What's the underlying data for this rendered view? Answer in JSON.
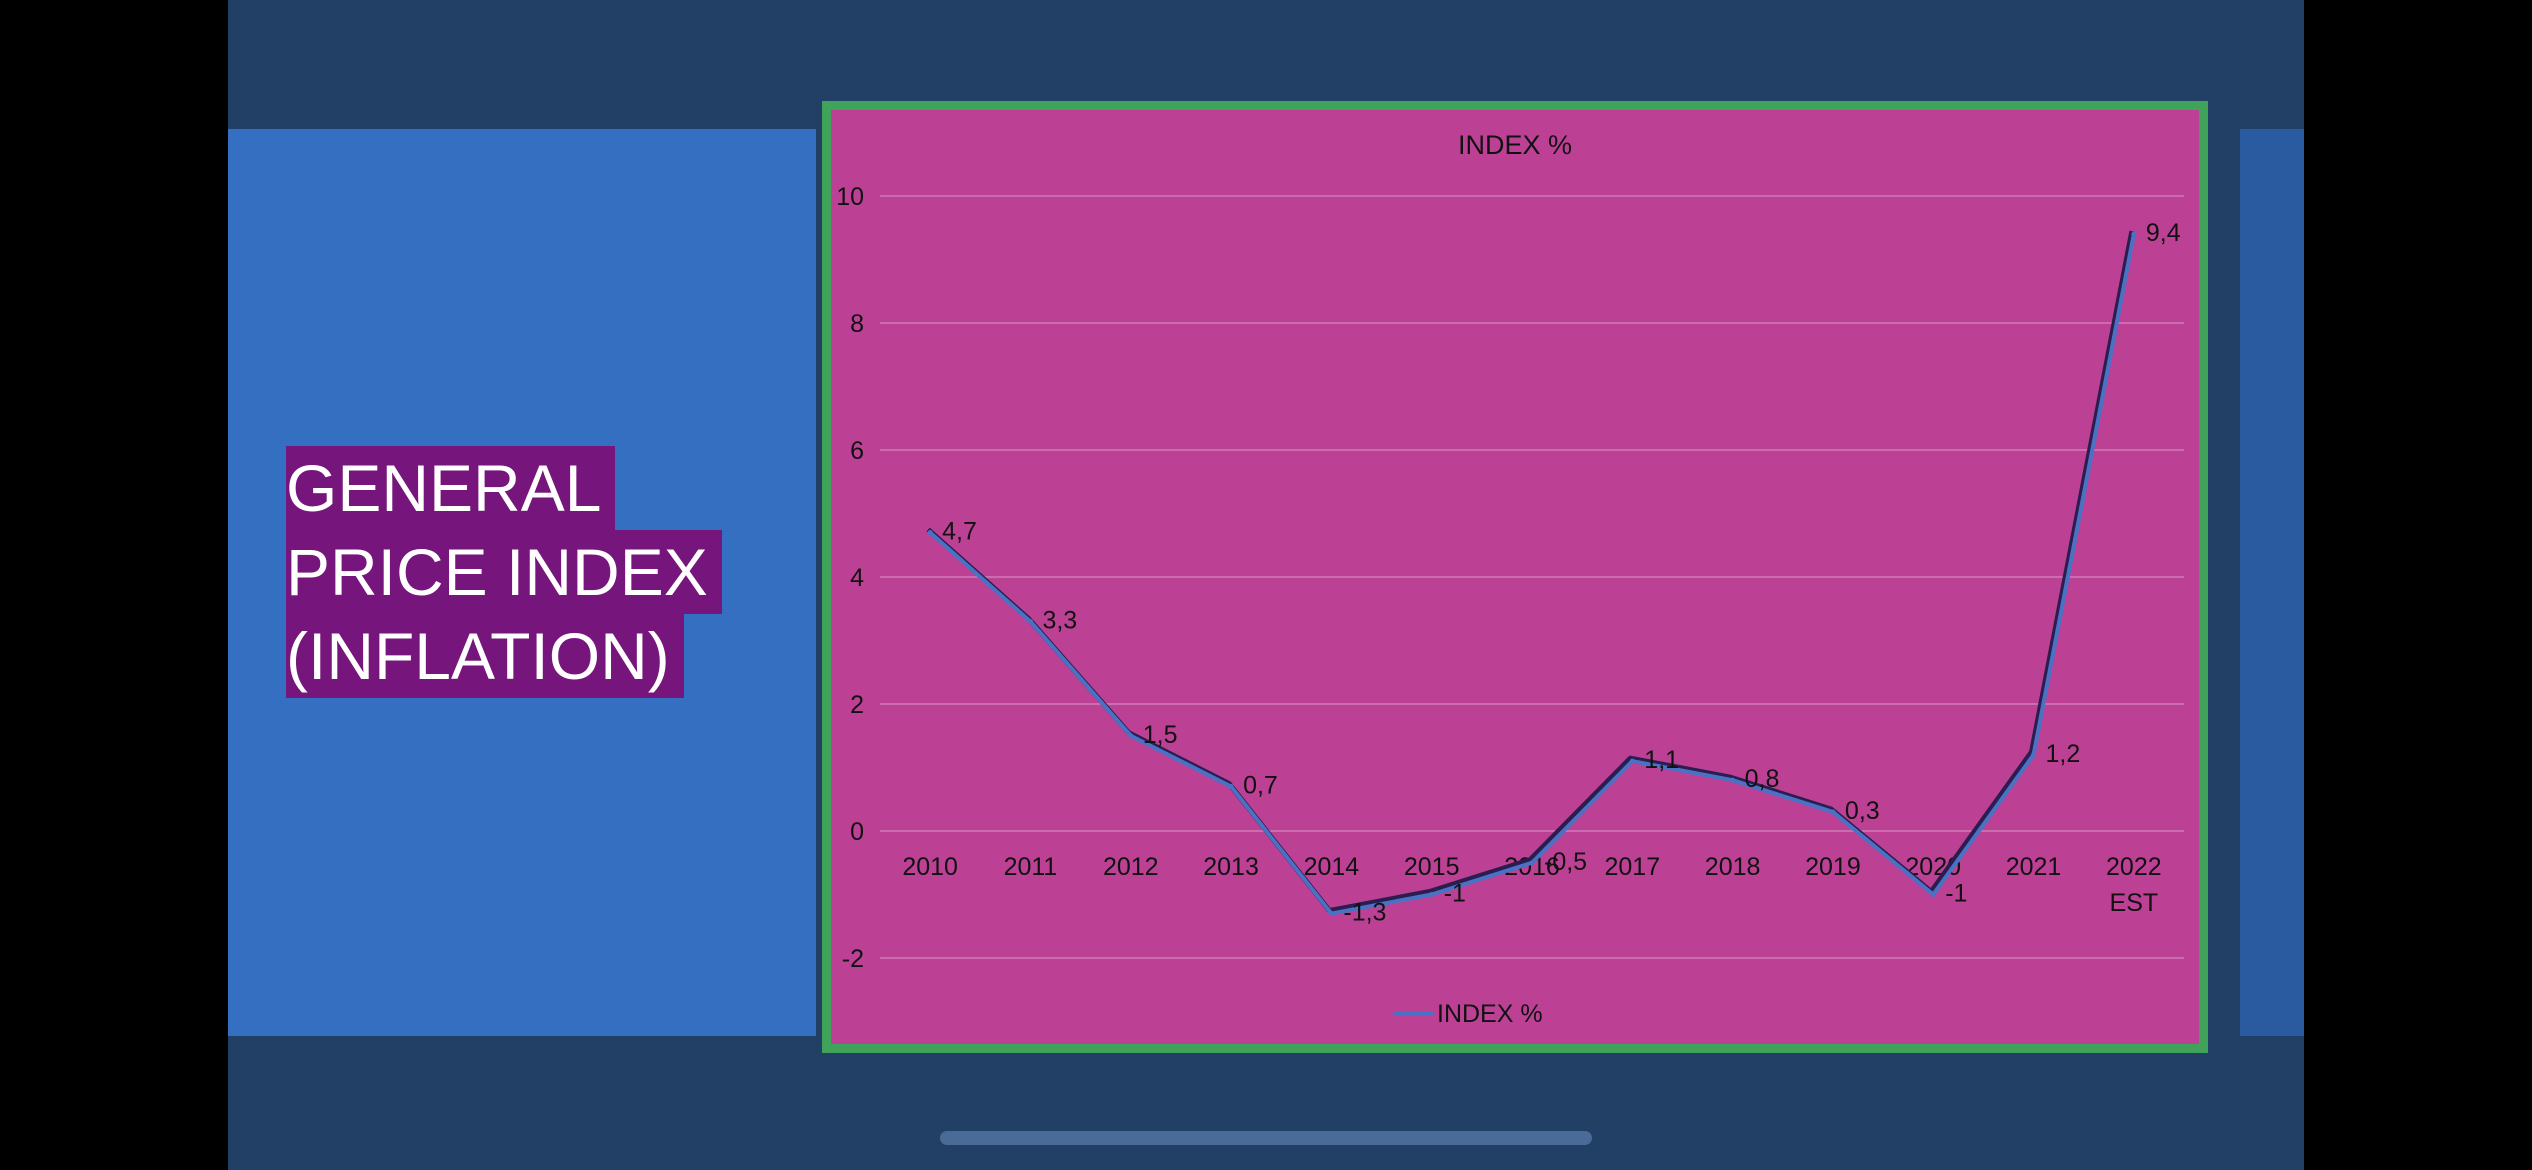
{
  "slide": {
    "title_lines": [
      "GENERAL",
      "PRICE INDEX",
      "(INFLATION)"
    ]
  },
  "colors": {
    "background": "#223f66",
    "panel": "#346fc1",
    "title_highlight": "#76157c",
    "chart_background": "#bc4195",
    "chart_border": "#3fa35a",
    "series_line": "#4a72c4"
  },
  "chart_data": {
    "type": "line",
    "title": "INDEX %",
    "categories": [
      "2010",
      "2011",
      "2012",
      "2013",
      "2014",
      "2015",
      "2016",
      "2017",
      "2018",
      "2019",
      "2020",
      "2021",
      "2022\nEST"
    ],
    "series": [
      {
        "name": "INDEX %",
        "values": [
          4.7,
          3.3,
          1.5,
          0.7,
          -1.3,
          -1,
          -0.5,
          1.1,
          0.8,
          0.3,
          -1,
          1.2,
          9.4
        ],
        "labels": [
          "4,7",
          "3,3",
          "1,5",
          "0,7",
          "-1,3",
          "-1",
          "-0,5",
          "1,1",
          "0,8",
          "0,3",
          "-1",
          "1,2",
          "9,4"
        ]
      }
    ],
    "ylim": [
      -2,
      10
    ],
    "yticks": [
      "-2",
      "0",
      "2",
      "4",
      "6",
      "8",
      "10"
    ],
    "grid": true,
    "legend": "bottom"
  }
}
